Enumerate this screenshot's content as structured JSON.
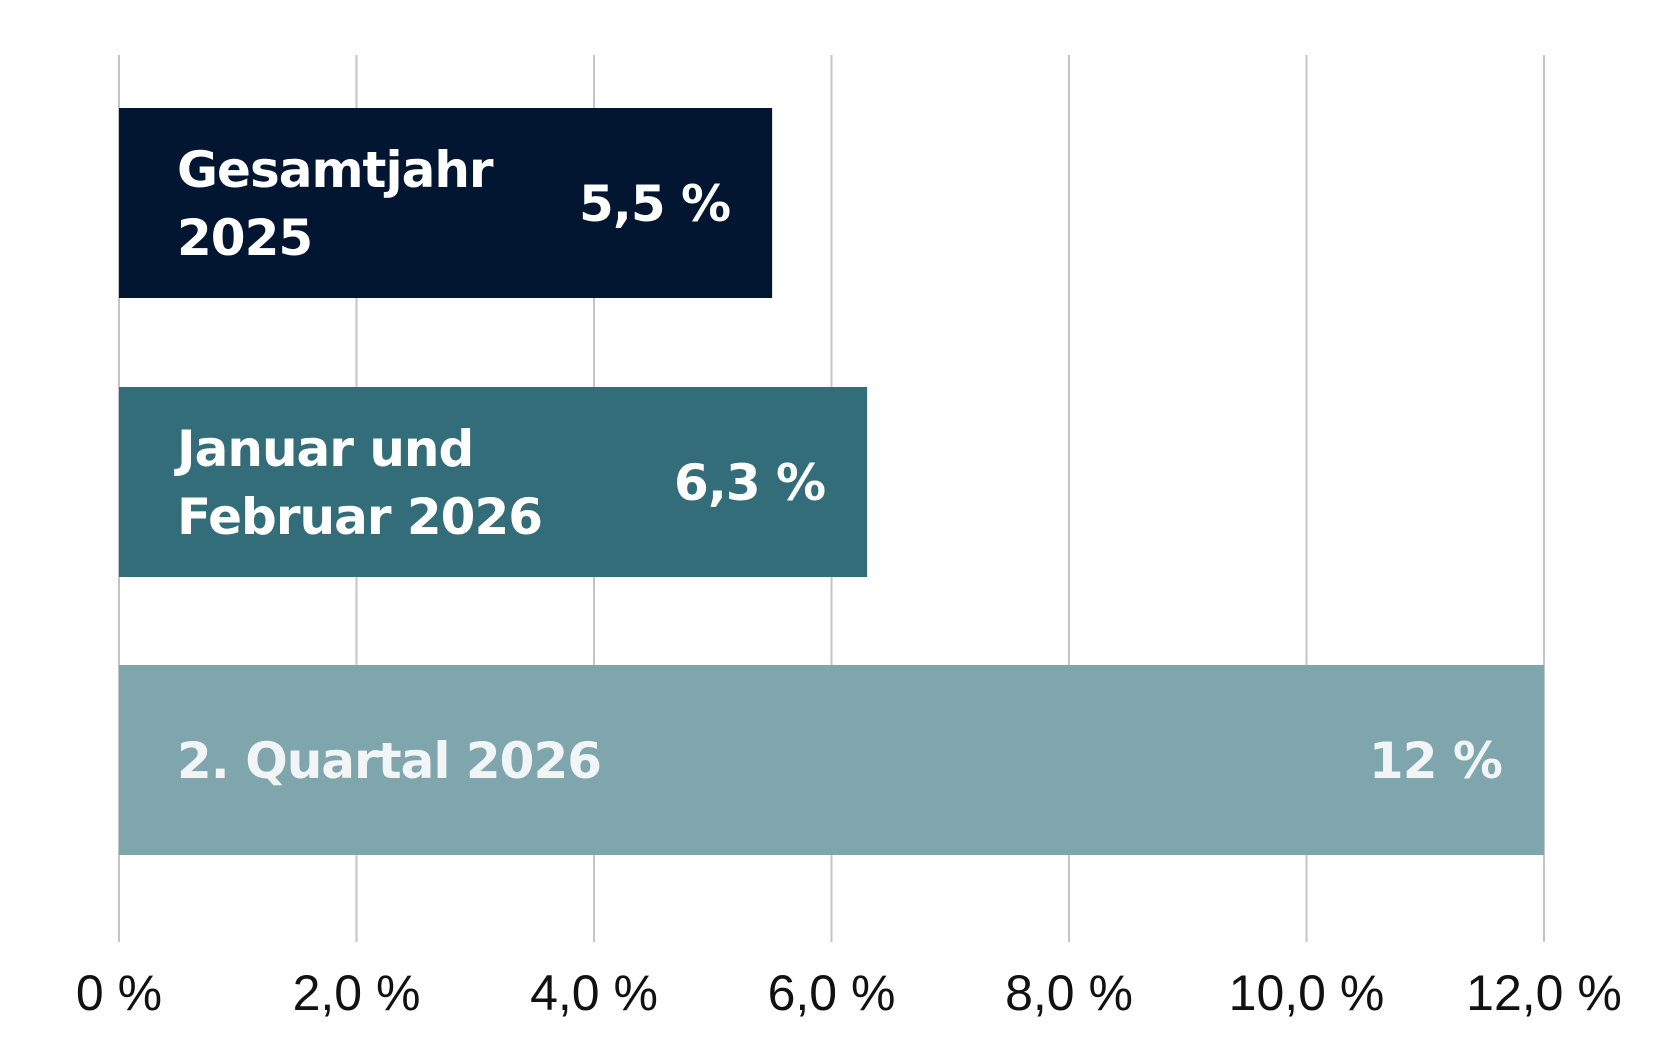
{
  "chart_data": {
    "type": "bar",
    "orientation": "horizontal",
    "categories": [
      [
        "Gesamtjahr",
        "2025"
      ],
      [
        "Januar und",
        "Februar 2026"
      ],
      [
        "2. Quartal 2026"
      ]
    ],
    "values": [
      5.5,
      6.3,
      12
    ],
    "value_labels": [
      "5,5 %",
      "6,3 %",
      "12 %"
    ],
    "bar_colors": [
      "#021631",
      "#326d79",
      "#7fa5ad"
    ],
    "label_colors": [
      "#ffffff",
      "#ffffff",
      "#f1f5f6"
    ],
    "xlim": [
      0,
      12
    ],
    "x_ticks": [
      0,
      2,
      4,
      6,
      8,
      10,
      12
    ],
    "x_tick_labels": [
      "0 %",
      "2,0 %",
      "4,0 %",
      "6,0 %",
      "8,0 %",
      "10,0 %",
      "12,0 %"
    ],
    "grid": true,
    "title": "",
    "xlabel": "",
    "ylabel": ""
  }
}
